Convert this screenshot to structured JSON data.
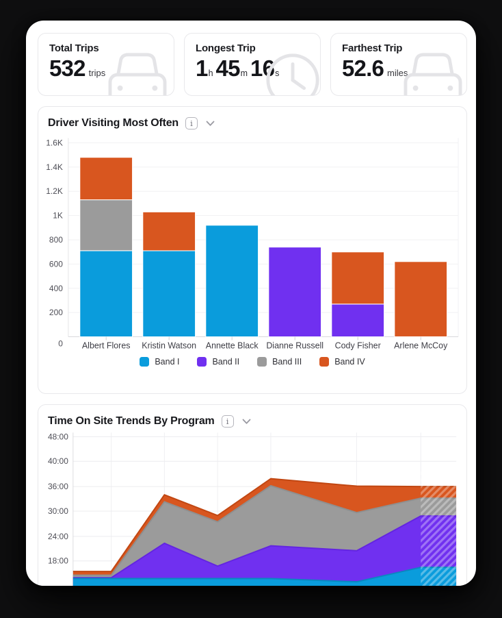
{
  "cards": [
    {
      "label": "Total Trips",
      "value": "532",
      "unit": "trips",
      "icon": "car"
    },
    {
      "label": "Longest Trip",
      "icon": "clock",
      "parts": [
        {
          "v": "1",
          "u": "h"
        },
        {
          "v": "45",
          "u": "m"
        },
        {
          "v": "16",
          "u": "s"
        }
      ]
    },
    {
      "label": "Farthest Trip",
      "value": "52.6",
      "unit": "miles",
      "icon": "car"
    }
  ],
  "colors": {
    "band1_blue": "#0a9cdc",
    "band2_purple": "#7030f0",
    "band3_gray": "#9b9b9b",
    "band4_orange": "#d8561f",
    "card_border": "#e8e8eb",
    "grid_line": "#f0f0f2",
    "axis_line": "#d8d8dc",
    "icon_gray": "#e4e4e7",
    "page_bg": "#ffffff",
    "canvas_bg": "#0f0f10"
  },
  "chart_data": [
    {
      "type": "bar",
      "stacked": true,
      "title": "Driver Visiting Most Often",
      "categories": [
        "Albert Flores",
        "Kristin Watson",
        "Annette Black",
        "Dianne Russell",
        "Cody Fisher",
        "Arlene McCoy"
      ],
      "series": [
        {
          "name": "Band I",
          "color": "#0a9cdc",
          "values": [
            710,
            710,
            920,
            0,
            0,
            0
          ]
        },
        {
          "name": "Band II",
          "color": "#7030f0",
          "values": [
            0,
            0,
            0,
            740,
            270,
            0
          ]
        },
        {
          "name": "Band III",
          "color": "#9b9b9b",
          "values": [
            420,
            0,
            0,
            0,
            0,
            0
          ]
        },
        {
          "name": "Band IV",
          "color": "#d8561f",
          "values": [
            350,
            320,
            0,
            0,
            430,
            620
          ]
        }
      ],
      "totals": [
        1480,
        1030,
        920,
        740,
        700,
        620
      ],
      "yticks": [
        {
          "label": "1.6K",
          "value": 1600
        },
        {
          "label": "1.4K",
          "value": 1400
        },
        {
          "label": "1.2K",
          "value": 1200
        },
        {
          "label": "1K",
          "value": 1000
        },
        {
          "label": "800",
          "value": 800
        },
        {
          "label": "600",
          "value": 600
        },
        {
          "label": "400",
          "value": 400
        },
        {
          "label": "200",
          "value": 200
        },
        {
          "label": "0",
          "value": 0
        }
      ],
      "ylim": [
        0,
        1600
      ],
      "grid": true,
      "legend_position": "bottom"
    },
    {
      "type": "area",
      "stacked": true,
      "title": "Time On Site Trends By Program",
      "yticks": [
        "48:00",
        "40:00",
        "36:00",
        "30:00",
        "24:00",
        "18:00"
      ],
      "x_labels_visible": false,
      "bottom_clipped_by_viewport": true,
      "forecast_hatched_from_last_point": true,
      "series_bottom_to_top": [
        {
          "color": "#0a9cdc",
          "edge": "#0a87c0",
          "cumulative_top_hours": [
            13.8,
            13.8,
            13.8,
            13.8,
            13.8,
            13.0,
            16.5,
            16.5
          ]
        },
        {
          "color": "#7030f0",
          "edge": "#6325e0",
          "cumulative_top_hours": [
            14.0,
            14.0,
            22.3,
            16.8,
            21.7,
            20.5,
            28.9,
            28.9
          ]
        },
        {
          "color": "#9b9b9b",
          "edge": "#8f8f8f",
          "cumulative_top_hours": [
            14.6,
            14.6,
            32.3,
            27.5,
            36.2,
            29.7,
            33.2,
            33.2
          ]
        },
        {
          "color": "#d8561f",
          "edge": "#c14712",
          "cumulative_top_hours": [
            15.5,
            15.5,
            34.0,
            29.0,
            37.9,
            36.1,
            36.0,
            36.0
          ]
        }
      ]
    }
  ]
}
